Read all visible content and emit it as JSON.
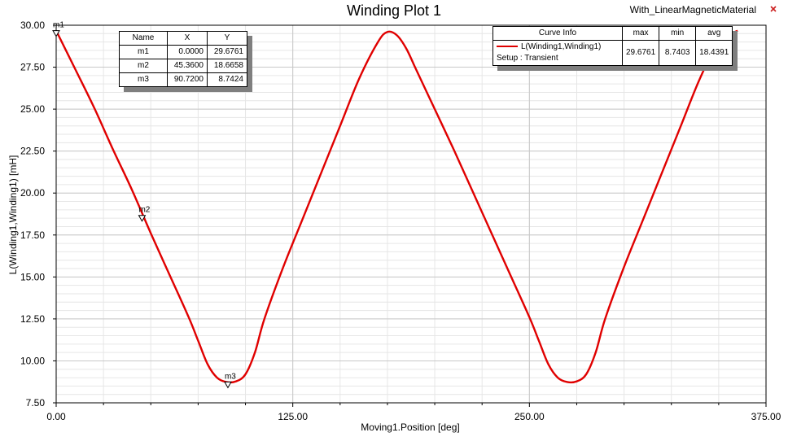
{
  "chart_data": {
    "type": "line",
    "title": "Winding Plot 1",
    "design_name": "With_LinearMagneticMaterial",
    "xlabel": "Moving1.Position [deg]",
    "ylabel": "L(Winding1,Winding1) [mH]",
    "xlim": [
      0,
      375
    ],
    "ylim": [
      7.5,
      30
    ],
    "x_ticks": [
      "0.00",
      "125.00",
      "250.00",
      "375.00"
    ],
    "y_ticks": [
      "7.50",
      "10.00",
      "12.50",
      "15.00",
      "17.50",
      "20.00",
      "22.50",
      "25.00",
      "27.50",
      "30.00"
    ],
    "grid": true,
    "series": [
      {
        "name": "L(Winding1,Winding1)",
        "color": "#e00000",
        "x": [
          0,
          10,
          20,
          30,
          40,
          50,
          60,
          70,
          75,
          80,
          85,
          90,
          95,
          100,
          105,
          110,
          120,
          130,
          140,
          150,
          160,
          170,
          175,
          180,
          185,
          190,
          200,
          210,
          220,
          230,
          240,
          250,
          255,
          260,
          265,
          270,
          275,
          280,
          285,
          290,
          300,
          310,
          320,
          330,
          340,
          350,
          360
        ],
        "y": [
          29.68,
          27.4,
          25.1,
          22.6,
          20.2,
          17.6,
          15.1,
          12.6,
          11.2,
          9.8,
          9.0,
          8.74,
          8.78,
          9.2,
          10.5,
          12.5,
          15.6,
          18.4,
          21.2,
          24.0,
          26.8,
          29.0,
          29.6,
          29.4,
          28.6,
          27.4,
          25.0,
          22.6,
          20.1,
          17.6,
          15.1,
          12.6,
          11.2,
          9.8,
          9.0,
          8.74,
          8.78,
          9.2,
          10.5,
          12.5,
          15.6,
          18.4,
          21.2,
          24.0,
          26.8,
          29.0,
          29.68
        ]
      }
    ],
    "markers": {
      "headers": [
        "Name",
        "X",
        "Y"
      ],
      "rows": [
        {
          "name": "m1",
          "x": "0.0000",
          "y": "29.6761",
          "xv": 0,
          "yv": 29.6761
        },
        {
          "name": "m2",
          "x": "45.3600",
          "y": "18.6658",
          "xv": 45.36,
          "yv": 18.6658
        },
        {
          "name": "m3",
          "x": "90.7200",
          "y": "8.7424",
          "xv": 90.72,
          "yv": 8.7424
        }
      ]
    },
    "curve_info": {
      "headers": [
        "Curve Info",
        "max",
        "min",
        "avg"
      ],
      "label": "L(Winding1,Winding1)",
      "setup": "Setup : Transient",
      "max": "29.6761",
      "min": "8.7403",
      "avg": "18.4391"
    }
  }
}
